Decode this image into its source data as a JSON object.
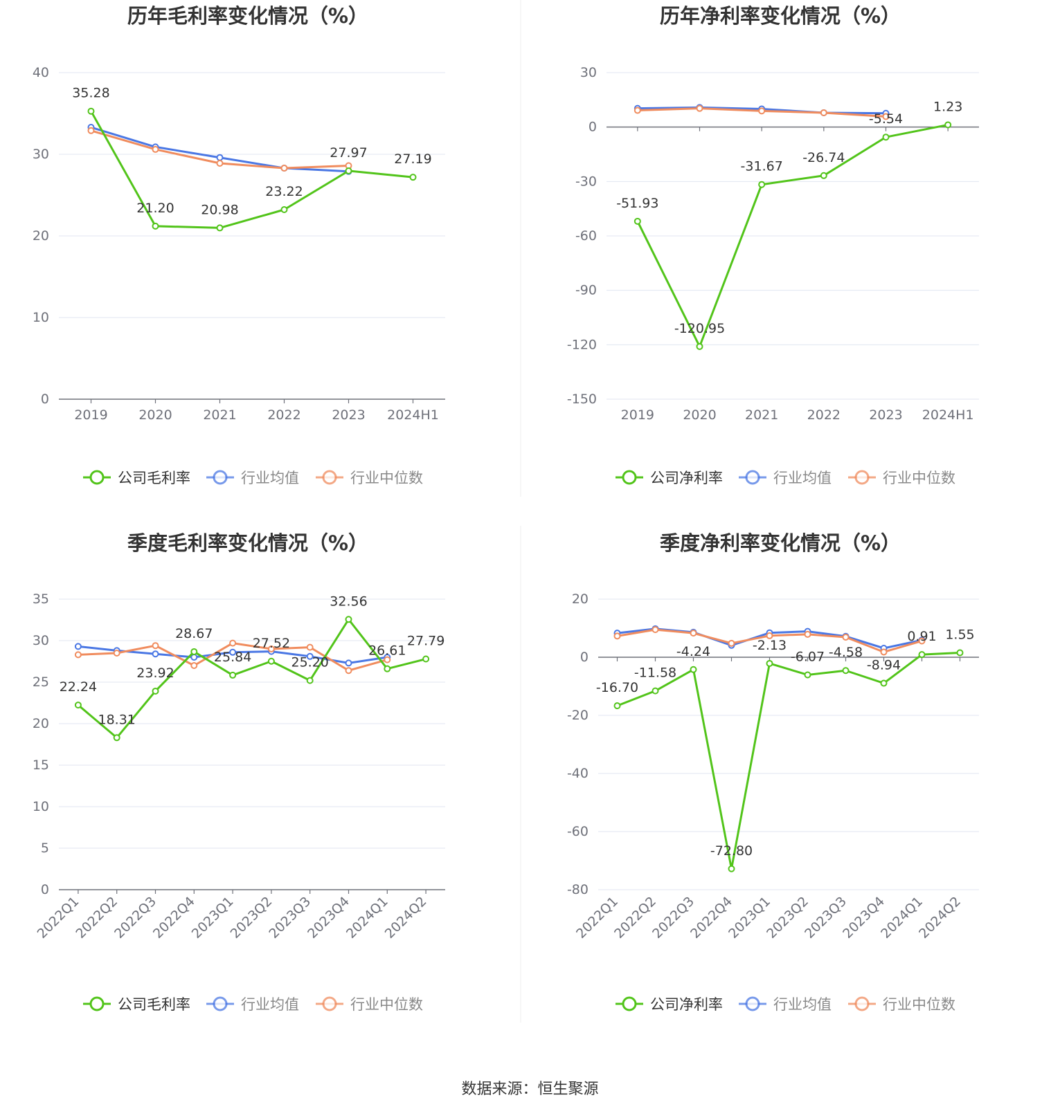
{
  "source_text": "数据来源：恒生聚源",
  "colors": {
    "company": "#52c41a",
    "industry_avg": "#4a77e4",
    "industry_median": "#f08c5e"
  },
  "chart_data": [
    {
      "type": "line",
      "title": "历年毛利率变化情况（%）",
      "categories": [
        "2019",
        "2020",
        "2021",
        "2022",
        "2023",
        "2024H1"
      ],
      "ylim": [
        0,
        40
      ],
      "yticks": [
        0,
        10,
        20,
        30,
        40
      ],
      "grid": true,
      "legend": "bottom",
      "series": [
        {
          "name": "公司毛利率",
          "values": [
            35.28,
            21.2,
            20.98,
            23.22,
            27.97,
            27.19
          ],
          "labels": [
            "35.28",
            "21.20",
            "20.98",
            "23.22",
            "27.97",
            "27.19"
          ]
        },
        {
          "name": "行业均值",
          "values": [
            33.3,
            30.9,
            29.6,
            28.3,
            27.9,
            null
          ]
        },
        {
          "name": "行业中位数",
          "values": [
            32.9,
            30.6,
            28.9,
            28.3,
            28.6,
            null
          ]
        }
      ]
    },
    {
      "type": "line",
      "title": "历年净利率变化情况（%）",
      "categories": [
        "2019",
        "2020",
        "2021",
        "2022",
        "2023",
        "2024H1"
      ],
      "ylim": [
        -150,
        30
      ],
      "yticks": [
        -150,
        -120,
        -90,
        -60,
        -30,
        0,
        30
      ],
      "grid": true,
      "legend": "bottom",
      "series": [
        {
          "name": "公司净利率",
          "values": [
            -51.93,
            -120.95,
            -31.67,
            -26.74,
            -5.54,
            1.23
          ],
          "labels": [
            "-51.93",
            "-120.95",
            "-31.67",
            "-26.74",
            "-5.54",
            "1.23"
          ]
        },
        {
          "name": "行业均值",
          "values": [
            10.3,
            10.8,
            10.0,
            7.9,
            7.6,
            null
          ]
        },
        {
          "name": "行业中位数",
          "values": [
            9.2,
            10.3,
            8.9,
            7.9,
            5.8,
            null
          ]
        }
      ]
    },
    {
      "type": "line",
      "title": "季度毛利率变化情况（%）",
      "categories": [
        "2022Q1",
        "2022Q2",
        "2022Q3",
        "2022Q4",
        "2023Q1",
        "2023Q2",
        "2023Q3",
        "2023Q4",
        "2024Q1",
        "2024Q2"
      ],
      "ylim": [
        0,
        35
      ],
      "yticks": [
        0,
        5,
        10,
        15,
        20,
        25,
        30,
        35
      ],
      "grid": true,
      "legend": "bottom",
      "series": [
        {
          "name": "公司毛利率",
          "values": [
            22.24,
            18.31,
            23.92,
            28.67,
            25.84,
            27.52,
            25.2,
            32.56,
            26.61,
            27.79
          ],
          "labels": [
            "22.24",
            "18.31",
            "23.92",
            "28.67",
            "25.84",
            "27.52",
            "25.20",
            "32.56",
            "26.61",
            "27.79"
          ]
        },
        {
          "name": "行业均值",
          "values": [
            29.3,
            28.8,
            28.4,
            28.0,
            28.6,
            28.7,
            28.1,
            27.3,
            28.0,
            null
          ]
        },
        {
          "name": "行业中位数",
          "values": [
            28.3,
            28.5,
            29.4,
            27.0,
            29.7,
            29.0,
            29.2,
            26.4,
            27.7,
            null
          ]
        }
      ]
    },
    {
      "type": "line",
      "title": "季度净利率变化情况（%）",
      "categories": [
        "2022Q1",
        "2022Q2",
        "2022Q3",
        "2022Q4",
        "2023Q1",
        "2023Q2",
        "2023Q3",
        "2023Q4",
        "2024Q1",
        "2024Q2"
      ],
      "ylim": [
        -80,
        20
      ],
      "yticks": [
        -80,
        -60,
        -40,
        -20,
        0,
        20
      ],
      "grid": true,
      "legend": "bottom",
      "series": [
        {
          "name": "公司净利率",
          "values": [
            -16.7,
            -11.58,
            -4.24,
            -72.8,
            -2.13,
            -6.07,
            -4.58,
            -8.94,
            0.91,
            1.55
          ],
          "labels": [
            "-16.70",
            "-11.58",
            "-4.24",
            "-72.80",
            "-2.13",
            "-6.07",
            "-4.58",
            "-8.94",
            "0.91",
            "1.55"
          ]
        },
        {
          "name": "行业均值",
          "values": [
            8.3,
            9.8,
            8.6,
            4.1,
            8.4,
            8.9,
            7.2,
            3.1,
            5.9,
            null
          ]
        },
        {
          "name": "行业中位数",
          "values": [
            7.3,
            9.5,
            8.3,
            4.8,
            7.4,
            7.9,
            6.9,
            1.8,
            5.6,
            null
          ]
        }
      ]
    }
  ]
}
